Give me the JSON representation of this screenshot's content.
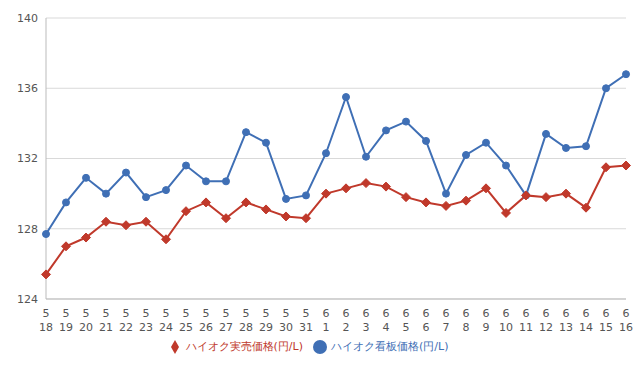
{
  "chart_data": {
    "type": "line",
    "categories": [
      "5\n18",
      "5\n19",
      "5\n20",
      "5\n21",
      "5\n22",
      "5\n23",
      "5\n24",
      "5\n25",
      "5\n26",
      "5\n27",
      "5\n28",
      "5\n29",
      "5\n30",
      "5\n31",
      "6\n1",
      "6\n2",
      "6\n3",
      "6\n4",
      "6\n5",
      "6\n6",
      "6\n7",
      "6\n8",
      "6\n9",
      "6\n10",
      "6\n11",
      "6\n12",
      "6\n13",
      "6\n14",
      "6\n15",
      "6\n16"
    ],
    "series": [
      {
        "name": "ハイオク看板価格(円/L)",
        "color": "#3f6fb5",
        "marker": "circle",
        "values": [
          127.7,
          129.5,
          130.9,
          130.0,
          131.2,
          129.8,
          130.2,
          131.6,
          130.7,
          130.7,
          133.5,
          132.9,
          129.7,
          129.9,
          132.3,
          135.5,
          132.1,
          133.6,
          134.1,
          133.0,
          130.0,
          132.2,
          132.9,
          131.6,
          129.9,
          133.4,
          132.6,
          132.7,
          136.0,
          136.8
        ]
      },
      {
        "name": "ハイオク実売価格(円/L)",
        "color": "#c0392b",
        "marker": "diamond",
        "values": [
          125.4,
          127.0,
          127.5,
          128.4,
          128.2,
          128.4,
          127.4,
          129.0,
          129.5,
          128.6,
          129.5,
          129.1,
          128.7,
          128.6,
          130.0,
          130.3,
          130.6,
          130.4,
          129.8,
          129.5,
          129.3,
          129.6,
          130.3,
          128.9,
          129.9,
          129.8,
          130.0,
          129.2,
          131.5,
          131.6
        ]
      }
    ],
    "ylim": [
      124,
      140
    ],
    "yticks": [
      124,
      128,
      132,
      136,
      140
    ],
    "grid": true,
    "legend": "bottom"
  }
}
